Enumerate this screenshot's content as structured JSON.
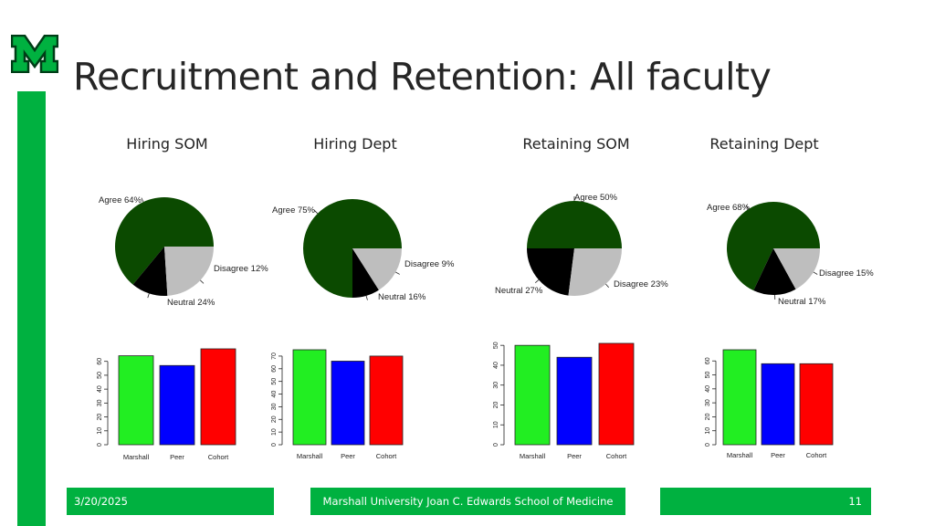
{
  "slide": {
    "title": "Recruitment and Retention: All faculty",
    "footer_date": "3/20/2025",
    "footer_center": "Marshall University Joan C. Edwards School of Medicine",
    "footer_page": "11",
    "logo_letter": "M"
  },
  "colors": {
    "accent": "#00b140",
    "agree": "#0b4a00",
    "neutral": "#bebebe",
    "disagree": "#000000",
    "marshall": "#22ee22",
    "peer": "#0000ff",
    "cohort": "#ff0000"
  },
  "chart_data": [
    {
      "type": "pie",
      "title": "Hiring SOM",
      "slices": [
        {
          "label": "Agree",
          "value": 64,
          "text": "Agree 64%"
        },
        {
          "label": "Disagree",
          "value": 12,
          "text": "Disagree 12%"
        },
        {
          "label": "Neutral",
          "value": 24,
          "text": "Neutral 24%"
        }
      ]
    },
    {
      "type": "pie",
      "title": "Hiring Dept",
      "slices": [
        {
          "label": "Agree",
          "value": 75,
          "text": "Agree 75%"
        },
        {
          "label": "Disagree",
          "value": 9,
          "text": "Disagree 9%"
        },
        {
          "label": "Neutral",
          "value": 16,
          "text": "Neutral 16%"
        }
      ]
    },
    {
      "type": "pie",
      "title": "Retaining SOM",
      "slices": [
        {
          "label": "Agree",
          "value": 50,
          "text": "Agree 50%"
        },
        {
          "label": "Disagree",
          "value": 23,
          "text": "Disagree 23%"
        },
        {
          "label": "Neutral",
          "value": 27,
          "text": "Neutral 27%"
        }
      ]
    },
    {
      "type": "pie",
      "title": "Retaining Dept",
      "slices": [
        {
          "label": "Agree",
          "value": 68,
          "text": "Agree 68%"
        },
        {
          "label": "Disagree",
          "value": 15,
          "text": "Disagree 15%"
        },
        {
          "label": "Neutral",
          "value": 17,
          "text": "Neutral 17%"
        }
      ]
    },
    {
      "type": "bar",
      "categories": [
        "Marshall",
        "Peer",
        "Cohort"
      ],
      "values": [
        64,
        57,
        69
      ],
      "ylim": [
        0,
        69
      ],
      "yticks": [
        0,
        10,
        20,
        30,
        40,
        50,
        60
      ]
    },
    {
      "type": "bar",
      "categories": [
        "Marshall",
        "Peer",
        "Cohort"
      ],
      "values": [
        75,
        66,
        70
      ],
      "ylim": [
        0,
        75
      ],
      "yticks": [
        0,
        10,
        20,
        30,
        40,
        50,
        60,
        70
      ]
    },
    {
      "type": "bar",
      "categories": [
        "Marshall",
        "Peer",
        "Cohort"
      ],
      "values": [
        50,
        44,
        51
      ],
      "ylim": [
        0,
        51
      ],
      "yticks": [
        0,
        10,
        20,
        30,
        40,
        50
      ]
    },
    {
      "type": "bar",
      "categories": [
        "Marshall",
        "Peer",
        "Cohort"
      ],
      "values": [
        68,
        58,
        58
      ],
      "ylim": [
        0,
        68
      ],
      "yticks": [
        0,
        10,
        20,
        30,
        40,
        50,
        60
      ]
    }
  ]
}
